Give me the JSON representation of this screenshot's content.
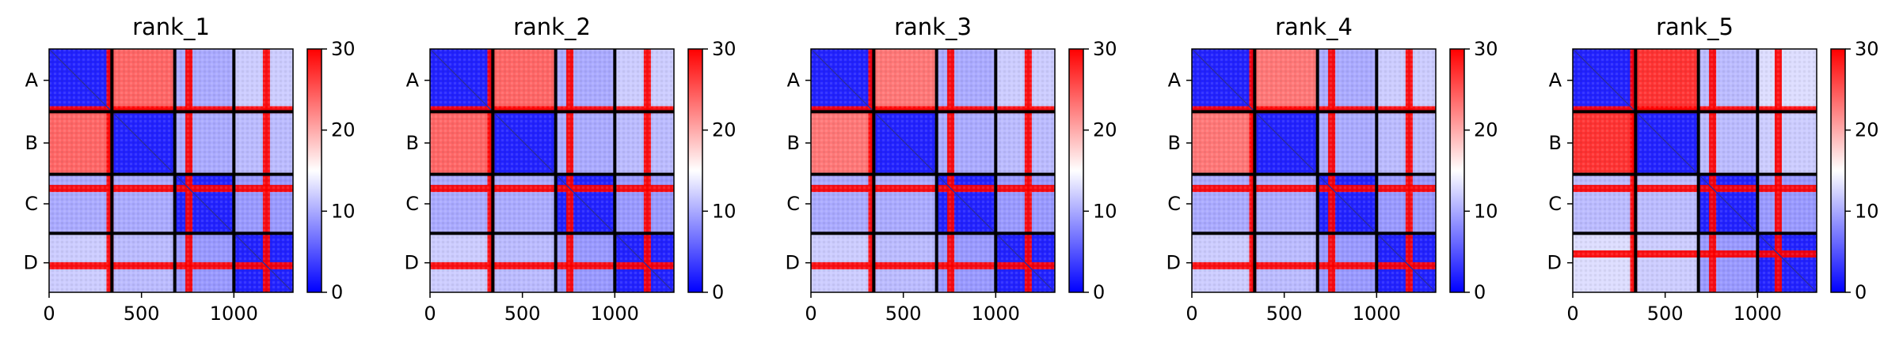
{
  "chart_data": {
    "type": "heatmap",
    "colorbar": {
      "min": 0,
      "max": 30,
      "ticks": [
        0,
        10,
        20,
        30
      ],
      "colors": [
        "#0000ff",
        "#ffffff",
        "#ff0000"
      ]
    },
    "chains": [
      {
        "label": "A",
        "start": 0,
        "end": 340
      },
      {
        "label": "B",
        "start": 340,
        "end": 680
      },
      {
        "label": "C",
        "start": 680,
        "end": 1000
      },
      {
        "label": "D",
        "start": 1000,
        "end": 1320
      }
    ],
    "xlim": [
      0,
      1320
    ],
    "xticks": [
      0,
      500,
      1000
    ],
    "panels": [
      {
        "title": "rank_1",
        "block_values": [
          [
            2,
            24,
            10,
            12
          ],
          [
            24,
            2,
            10,
            11
          ],
          [
            10,
            10,
            2,
            9
          ],
          [
            12,
            11,
            9,
            2
          ]
        ],
        "red_bands": [
          {
            "chain": "A",
            "pos": 0.97
          },
          {
            "chain": "C",
            "pos": 0.24
          },
          {
            "chain": "D",
            "pos": 0.55
          }
        ]
      },
      {
        "title": "rank_2",
        "block_values": [
          [
            2,
            24,
            10,
            12
          ],
          [
            24,
            2,
            10,
            11
          ],
          [
            10,
            10,
            2,
            9
          ],
          [
            12,
            11,
            9,
            2
          ]
        ],
        "red_bands": [
          {
            "chain": "A",
            "pos": 0.97
          },
          {
            "chain": "C",
            "pos": 0.24
          },
          {
            "chain": "D",
            "pos": 0.55
          }
        ]
      },
      {
        "title": "rank_3",
        "block_values": [
          [
            2,
            23,
            10,
            12
          ],
          [
            23,
            2,
            10,
            11
          ],
          [
            10,
            10,
            2,
            9
          ],
          [
            12,
            11,
            9,
            2
          ]
        ],
        "red_bands": [
          {
            "chain": "A",
            "pos": 0.97
          },
          {
            "chain": "C",
            "pos": 0.24
          },
          {
            "chain": "D",
            "pos": 0.55
          }
        ]
      },
      {
        "title": "rank_4",
        "block_values": [
          [
            2,
            23,
            10,
            12
          ],
          [
            23,
            2,
            10,
            11
          ],
          [
            10,
            10,
            2,
            9
          ],
          [
            12,
            11,
            9,
            2
          ]
        ],
        "red_bands": [
          {
            "chain": "A",
            "pos": 0.97
          },
          {
            "chain": "C",
            "pos": 0.24
          },
          {
            "chain": "D",
            "pos": 0.55
          }
        ]
      },
      {
        "title": "rank_5",
        "block_values": [
          [
            2,
            27,
            11,
            13
          ],
          [
            27,
            2,
            11,
            12
          ],
          [
            11,
            11,
            2,
            9
          ],
          [
            13,
            12,
            9,
            2
          ]
        ],
        "red_bands": [
          {
            "chain": "A",
            "pos": 0.97
          },
          {
            "chain": "C",
            "pos": 0.24
          },
          {
            "chain": "D",
            "pos": 0.35
          }
        ]
      }
    ]
  }
}
